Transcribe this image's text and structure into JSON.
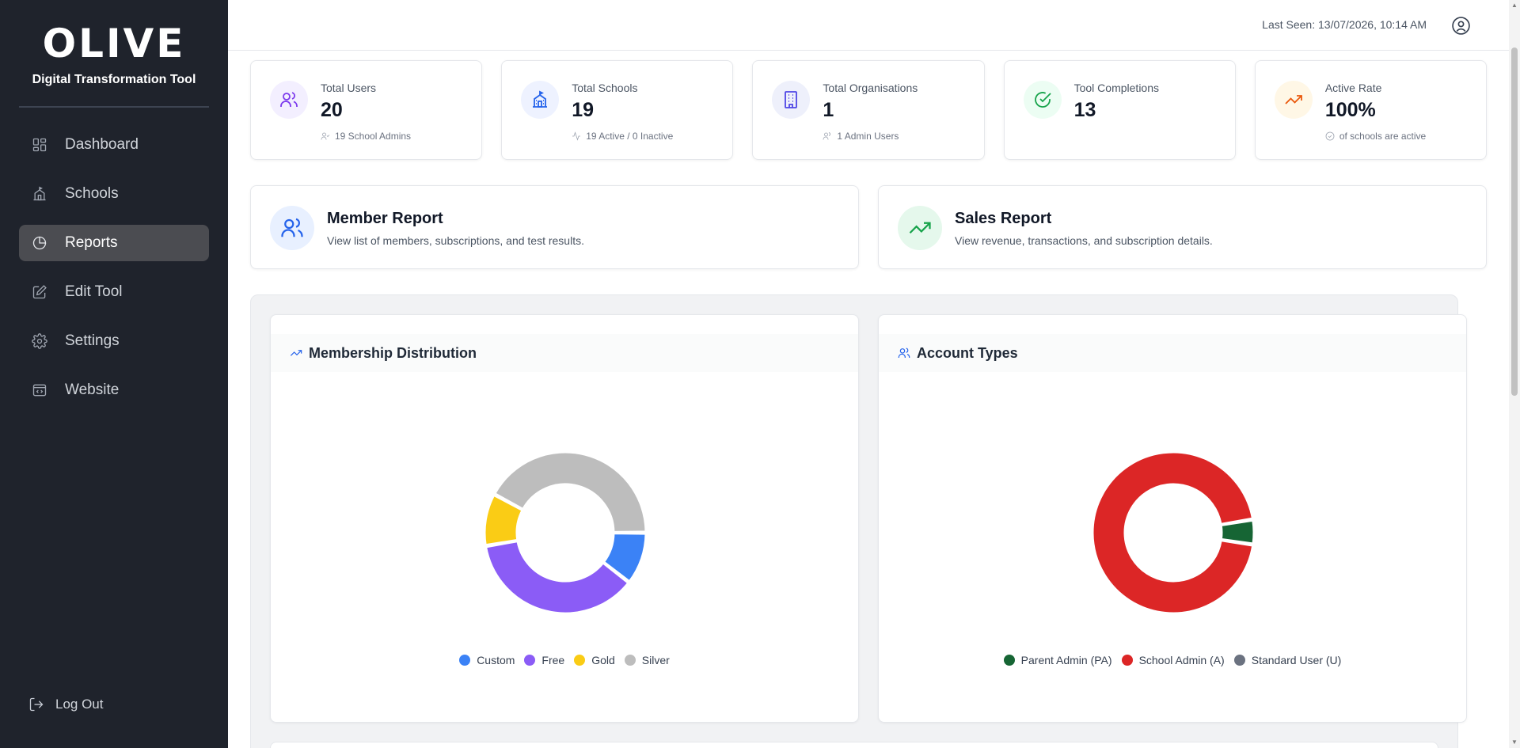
{
  "brand": {
    "logo": "OLIVE",
    "subtitle": "Digital Transformation Tool"
  },
  "nav": [
    {
      "label": "Dashboard",
      "icon": "dashboard-icon",
      "active": false
    },
    {
      "label": "Schools",
      "icon": "school-icon",
      "active": false
    },
    {
      "label": "Reports",
      "icon": "pie-chart-icon",
      "active": true
    },
    {
      "label": "Edit Tool",
      "icon": "edit-icon",
      "active": false
    },
    {
      "label": "Settings",
      "icon": "gear-icon",
      "active": false
    },
    {
      "label": "Website",
      "icon": "website-icon",
      "active": false
    }
  ],
  "logout": {
    "label": "Log Out"
  },
  "header": {
    "last_seen": "Last Seen: 13/07/2026, 10:14 AM"
  },
  "stats": [
    {
      "label": "Total Users",
      "value": "20",
      "sub": "19 School Admins",
      "icon": "users-icon",
      "icon_color": "#7c3aed",
      "bg": "#f3efff"
    },
    {
      "label": "Total Schools",
      "value": "19",
      "sub": "19 Active / 0 Inactive",
      "icon": "school-icon",
      "icon_color": "#2563eb",
      "bg": "#eef2ff"
    },
    {
      "label": "Total Organisations",
      "value": "1",
      "sub": "1 Admin Users",
      "icon": "building-icon",
      "icon_color": "#4f46e5",
      "bg": "#eef0fb"
    },
    {
      "label": "Tool Completions",
      "value": "13",
      "sub": "",
      "icon": "check-circle-icon",
      "icon_color": "#16a34a",
      "bg": "#ecfdf3"
    },
    {
      "label": "Active Rate",
      "value": "100%",
      "sub": "of schools are active",
      "icon": "trending-up-icon",
      "icon_color": "#ea580c",
      "bg": "#fff7e6"
    }
  ],
  "reports": [
    {
      "title": "Member Report",
      "desc": "View list of members, subscriptions, and test results.",
      "icon": "users-icon",
      "icon_color": "#2563eb",
      "bg": "#e8f0ff"
    },
    {
      "title": "Sales Report",
      "desc": "View revenue, transactions, and subscription details.",
      "icon": "trending-up-icon",
      "icon_color": "#16a34a",
      "bg": "#e5f8ec"
    }
  ],
  "chart_data": [
    {
      "type": "pie",
      "title": "Membership Distribution",
      "categories": [
        "Custom",
        "Free",
        "Gold",
        "Silver"
      ],
      "values": [
        2,
        7,
        2,
        8
      ],
      "colors": [
        "#3b82f6",
        "#8b5cf6",
        "#facc15",
        "#bdbdbd"
      ],
      "legend": "bottom"
    },
    {
      "type": "pie",
      "title": "Account Types",
      "categories": [
        "Parent Admin (PA)",
        "School Admin (A)",
        "Standard User (U)"
      ],
      "values": [
        1,
        19,
        0
      ],
      "colors": [
        "#166534",
        "#dc2626",
        "#6b7280"
      ],
      "legend": "bottom"
    }
  ]
}
